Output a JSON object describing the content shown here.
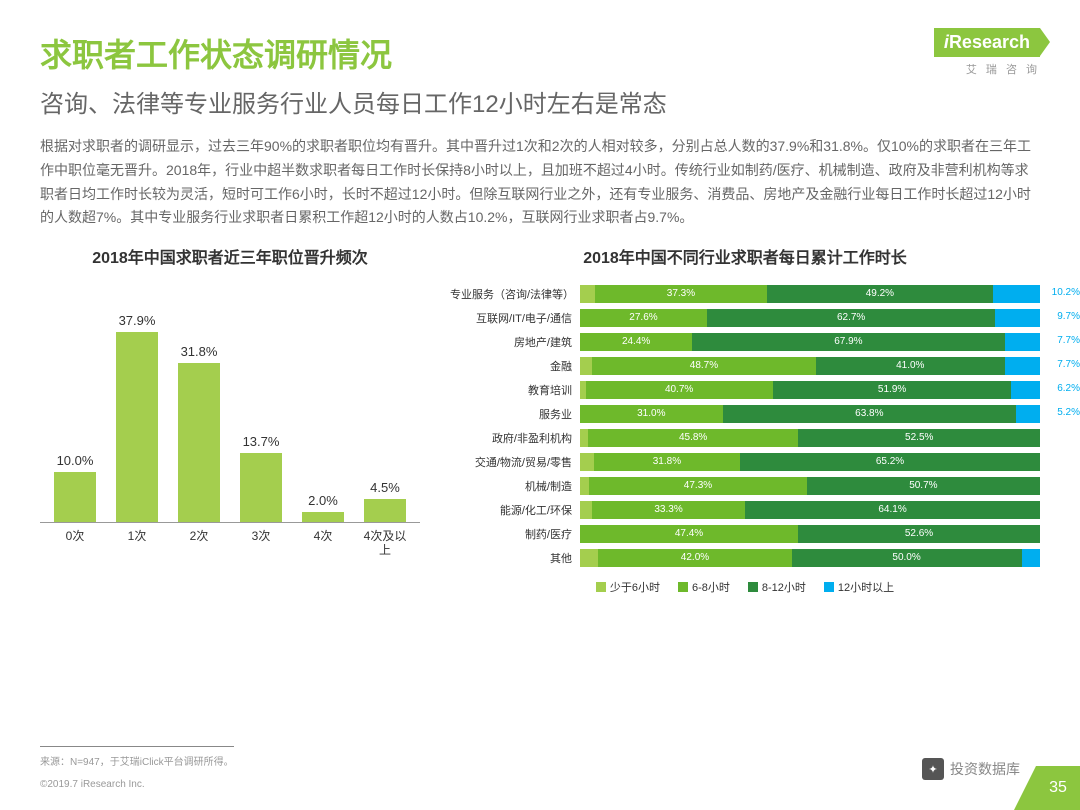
{
  "logo": {
    "brand": "iResearch",
    "sub": "艾 瑞 咨 询"
  },
  "title": "求职者工作状态调研情况",
  "subtitle": "咨询、法律等专业服务行业人员每日工作12小时左右是常态",
  "body": "根据对求职者的调研显示，过去三年90%的求职者职位均有晋升。其中晋升过1次和2次的人相对较多，分别占总人数的37.9%和31.8%。仅10%的求职者在三年工作中职位毫无晋升。2018年，行业中超半数求职者每日工作时长保持8小时以上，且加班不超过4小时。传统行业如制药/医疗、机械制造、政府及非营利机构等求职者日均工作时长较为灵活，短时可工作6小时，长时不超过12小时。但除互联网行业之外，还有专业服务、消费品、房地产及金融行业每日工作时长超过12小时的人数超7%。其中专业服务行业求职者日累积工作超12小时的人数占10.2%，互联网行业求职者占9.7%。",
  "bar_chart": {
    "title": "2018年中国求职者近三年职位晋升频次",
    "color": "#a4ce4e",
    "ymax": 40,
    "categories": [
      "0次",
      "1次",
      "2次",
      "3次",
      "4次",
      "4次及以上"
    ],
    "values": [
      10.0,
      37.9,
      31.8,
      13.7,
      2.0,
      4.5
    ],
    "labels": [
      "10.0%",
      "37.9%",
      "31.8%",
      "13.7%",
      "2.0%",
      "4.5%"
    ]
  },
  "hbar_chart": {
    "title": "2018年中国不同行业求职者每日累计工作时长",
    "colors": [
      "#a4ce4e",
      "#6eb92b",
      "#2e8b3d",
      "#00aeef"
    ],
    "legend": [
      "少于6小时",
      "6-8小时",
      "8-12小时",
      "12小时以上"
    ],
    "rows": [
      {
        "cat": "专业服务（咨询/法律等）",
        "v": [
          3.3,
          37.3,
          49.2,
          10.2
        ],
        "lab": [
          "",
          "37.3%",
          "49.2%",
          "10.2%"
        ]
      },
      {
        "cat": "互联网/IT/电子/通信",
        "v": [
          0,
          27.6,
          62.7,
          9.7
        ],
        "lab": [
          "",
          "27.6%",
          "62.7%",
          "9.7%"
        ]
      },
      {
        "cat": "房地产/建筑",
        "v": [
          0,
          24.4,
          67.9,
          7.7
        ],
        "lab": [
          "",
          "24.4%",
          "67.9%",
          "7.7%"
        ]
      },
      {
        "cat": "金融",
        "v": [
          2.6,
          48.7,
          41.0,
          7.7
        ],
        "lab": [
          "",
          "48.7%",
          "41.0%",
          "7.7%"
        ]
      },
      {
        "cat": "教育培训",
        "v": [
          1.2,
          40.7,
          51.9,
          6.2
        ],
        "lab": [
          "",
          "40.7%",
          "51.9%",
          "6.2%"
        ]
      },
      {
        "cat": "服务业",
        "v": [
          0,
          31.0,
          63.8,
          5.2
        ],
        "lab": [
          "",
          "31.0%",
          "63.8%",
          "5.2%"
        ]
      },
      {
        "cat": "政府/非盈利机构",
        "v": [
          1.7,
          45.8,
          52.5,
          0
        ],
        "lab": [
          "",
          "45.8%",
          "52.5%",
          ""
        ]
      },
      {
        "cat": "交通/物流/贸易/零售",
        "v": [
          3.0,
          31.8,
          65.2,
          0
        ],
        "lab": [
          "",
          "31.8%",
          "65.2%",
          ""
        ]
      },
      {
        "cat": "机械/制造",
        "v": [
          2.0,
          47.3,
          50.7,
          0
        ],
        "lab": [
          "",
          "47.3%",
          "50.7%",
          ""
        ]
      },
      {
        "cat": "能源/化工/环保",
        "v": [
          2.6,
          33.3,
          64.1,
          0
        ],
        "lab": [
          "",
          "33.3%",
          "64.1%",
          ""
        ]
      },
      {
        "cat": "制药/医疗",
        "v": [
          0,
          47.4,
          52.6,
          0
        ],
        "lab": [
          "",
          "47.4%",
          "52.6%",
          ""
        ]
      },
      {
        "cat": "其他",
        "v": [
          4.0,
          42.0,
          50.0,
          4.0
        ],
        "lab": [
          "",
          "42.0%",
          "50.0%",
          ""
        ]
      }
    ]
  },
  "source": "来源：N=947，于艾瑞iClick平台调研所得。",
  "copyright": "©2019.7 iResearch Inc.",
  "page_num": "35",
  "watermark": "投资数据库"
}
